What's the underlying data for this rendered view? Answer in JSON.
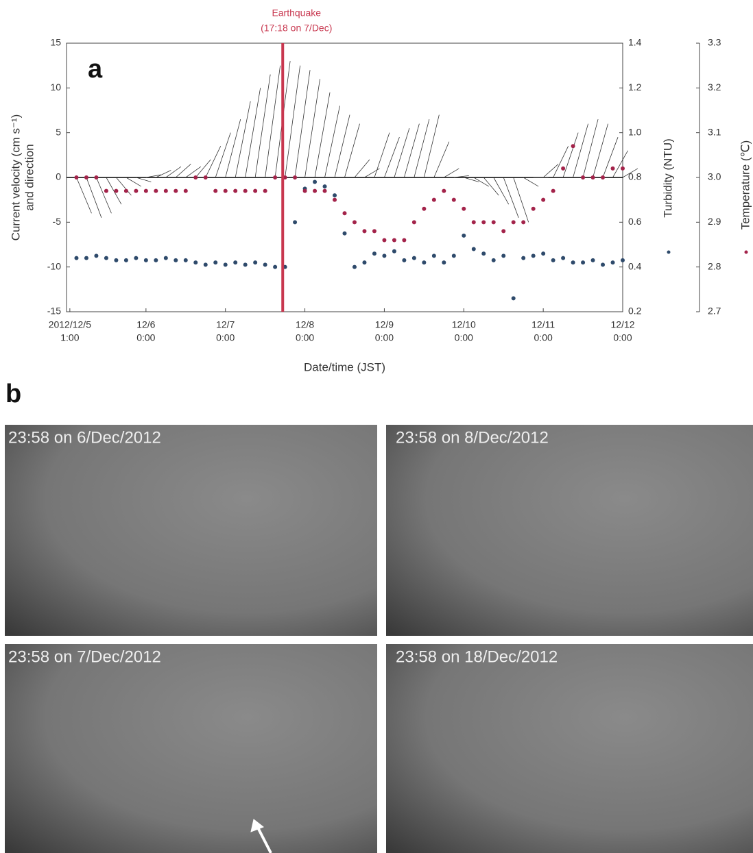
{
  "chart_data": {
    "type": "scatter",
    "panel_label": "a",
    "annotation": {
      "x": 2.721,
      "text": [
        "Earthquake",
        "(17:18 on 7/Dec)"
      ],
      "color": "#c8374f"
    },
    "xlabel": "Date/time (JST)",
    "ylabel": [
      "Current velocity (cm s⁻¹)",
      "and direction"
    ],
    "y2label": "Turbidity (NTU)",
    "y3label": "Temperature (℃)",
    "xlim": [
      0,
      7
    ],
    "xticks": [
      {
        "value": 0.042,
        "label": [
          "2012/12/5",
          "1:00"
        ]
      },
      {
        "value": 1,
        "label": [
          "12/6",
          "0:00"
        ]
      },
      {
        "value": 2,
        "label": [
          "12/7",
          "0:00"
        ]
      },
      {
        "value": 3,
        "label": [
          "12/8",
          "0:00"
        ]
      },
      {
        "value": 4,
        "label": [
          "12/9",
          "0:00"
        ]
      },
      {
        "value": 5,
        "label": [
          "12/10",
          "0:00"
        ]
      },
      {
        "value": 6,
        "label": [
          "12/11",
          "0:00"
        ]
      },
      {
        "value": 7,
        "label": [
          "12/12",
          "0:00"
        ]
      }
    ],
    "ylim": [
      -15,
      15
    ],
    "yticks": [
      -15,
      -10,
      -5,
      0,
      5,
      10,
      15
    ],
    "y2lim": [
      0.2,
      1.4
    ],
    "y2ticks": [
      0.2,
      0.4,
      0.6,
      0.8,
      {
        "value": 1,
        "label": "1.0"
      },
      1.2,
      1.4
    ],
    "y3lim": [
      2.7,
      3.3
    ],
    "y3ticks": [
      2.7,
      2.8,
      2.9,
      {
        "value": 3,
        "label": "3.0"
      },
      3.1,
      3.2,
      3.3
    ],
    "x": [
      0.125,
      0.25,
      0.375,
      0.5,
      0.625,
      0.75,
      0.875,
      1,
      1.125,
      1.25,
      1.375,
      1.5,
      1.625,
      1.75,
      1.875,
      2,
      2.125,
      2.25,
      2.375,
      2.5,
      2.625,
      2.75,
      2.875,
      3,
      3.125,
      3.25,
      3.375,
      3.5,
      3.625,
      3.75,
      3.875,
      4,
      4.125,
      4.25,
      4.375,
      4.5,
      4.625,
      4.75,
      4.875,
      5,
      5.125,
      5.25,
      5.375,
      5.5,
      5.625,
      5.75,
      5.875,
      6,
      6.125,
      6.25,
      6.375,
      6.5,
      6.625,
      6.75,
      6.875,
      7
    ],
    "series": [
      {
        "style": "stick",
        "axis": "y",
        "color": "#333333",
        "values": [
          -4,
          -4.5,
          -4,
          -3,
          -2,
          -1,
          -0.5,
          0.3,
          0.8,
          1.2,
          1.5,
          1.2,
          2,
          3.5,
          5,
          6.5,
          8.5,
          10,
          11.5,
          12.5,
          13,
          12.5,
          12,
          11,
          9.5,
          8,
          7,
          6,
          2,
          1,
          5,
          4.5,
          5.5,
          6,
          6.5,
          7,
          4,
          1,
          0.2,
          -0.5,
          -1,
          -2,
          -3,
          -4.5,
          -5,
          -1,
          0,
          1.5,
          3.5,
          5,
          6,
          6.5,
          6,
          4.5,
          3,
          1
        ]
      },
      {
        "style": "dot",
        "axis": "y2",
        "color": "#2e4a6b",
        "values": [
          0.44,
          0.44,
          0.45,
          0.44,
          0.43,
          0.43,
          0.44,
          0.43,
          0.43,
          0.44,
          0.43,
          0.43,
          0.42,
          0.41,
          0.42,
          0.41,
          0.42,
          0.41,
          0.42,
          0.41,
          0.4,
          0.4,
          0.6,
          0.75,
          0.78,
          0.76,
          0.72,
          0.55,
          0.4,
          0.42,
          0.46,
          0.45,
          0.47,
          0.43,
          0.44,
          0.42,
          0.45,
          0.42,
          0.45,
          0.54,
          0.48,
          0.46,
          0.43,
          0.45,
          0.26,
          0.44,
          0.45,
          0.46,
          0.43,
          0.44,
          0.42,
          0.42,
          0.43,
          0.41,
          0.42,
          0.43
        ]
      },
      {
        "style": "dot",
        "axis": "y3",
        "color": "#a3234a",
        "values": [
          3,
          3,
          3,
          2.97,
          2.97,
          2.97,
          2.97,
          2.97,
          2.97,
          2.97,
          2.97,
          2.97,
          3,
          3,
          2.97,
          2.97,
          2.97,
          2.97,
          2.97,
          2.97,
          3,
          3,
          3,
          2.97,
          2.97,
          2.97,
          2.95,
          2.92,
          2.9,
          2.88,
          2.88,
          2.86,
          2.86,
          2.86,
          2.9,
          2.93,
          2.95,
          2.97,
          2.95,
          2.93,
          2.9,
          2.9,
          2.9,
          2.88,
          2.9,
          2.9,
          2.93,
          2.95,
          2.97,
          3.02,
          3.07,
          3,
          3,
          3,
          3.02,
          3.02
        ]
      }
    ]
  },
  "panel_b": "b",
  "photos": [
    {
      "caption": "23:58 on 6/Dec/2012"
    },
    {
      "caption": "23:58 on 8/Dec/2012"
    },
    {
      "caption": "23:58 on 7/Dec/2012"
    },
    {
      "caption": "23:58 on 18/Dec/2012"
    }
  ]
}
